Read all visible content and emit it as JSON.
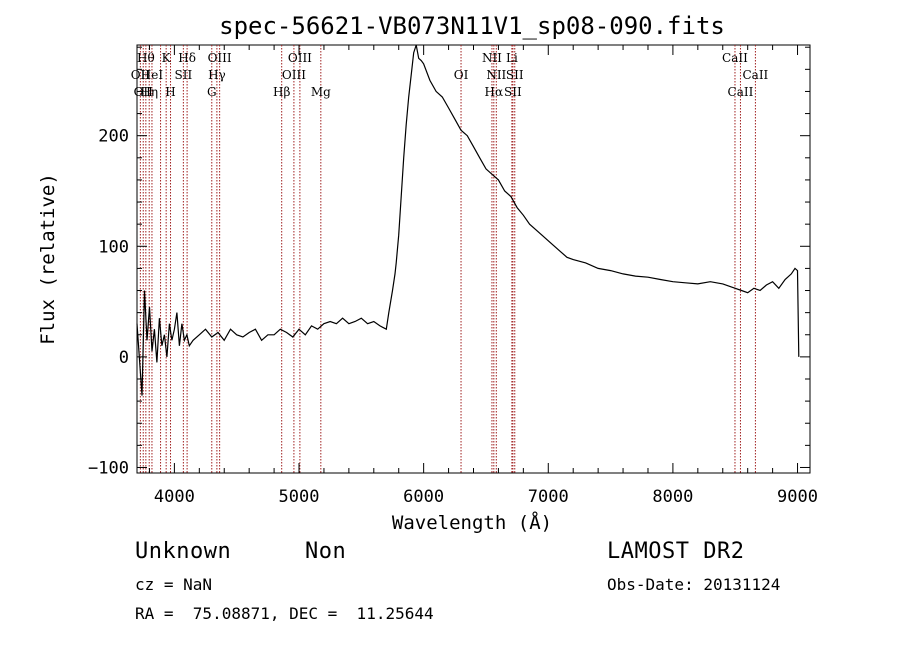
{
  "chart_data": {
    "type": "line",
    "title": "spec-56621-VB073N11V1_sp08-090.fits",
    "xlabel": "Wavelength (Å)",
    "ylabel": "Flux (relative)",
    "xlim": [
      3700,
      9100
    ],
    "ylim": [
      -105,
      282
    ],
    "xticks": [
      4000,
      5000,
      6000,
      7000,
      8000,
      9000
    ],
    "yticks": [
      -100,
      0,
      100,
      200
    ],
    "grid": false,
    "line_color": "#000000",
    "marker_color": "#a02020",
    "series": [
      {
        "x": [
          3700,
          3740,
          3760,
          3780,
          3800,
          3820,
          3840,
          3860,
          3880,
          3900,
          3920,
          3940,
          3960,
          3980,
          4000,
          4020,
          4040,
          4060,
          4080,
          4100,
          4120,
          4150,
          4200,
          4250,
          4300,
          4350,
          4400,
          4450,
          4500,
          4550,
          4600,
          4650,
          4700,
          4750,
          4800,
          4850,
          4900,
          4950,
          5000,
          5050,
          5100,
          5150,
          5200,
          5250,
          5300,
          5350,
          5400,
          5450,
          5500,
          5550,
          5600,
          5650,
          5700,
          5720,
          5750,
          5770,
          5780,
          5800,
          5820,
          5840,
          5860,
          5880,
          5900,
          5920,
          5940,
          5960,
          5980,
          6000,
          6050,
          6100,
          6150,
          6200,
          6250,
          6300,
          6350,
          6400,
          6450,
          6500,
          6550,
          6600,
          6650,
          6700,
          6750,
          6800,
          6850,
          6900,
          6950,
          7000,
          7050,
          7100,
          7150,
          7200,
          7300,
          7400,
          7500,
          7600,
          7700,
          7800,
          7900,
          8000,
          8100,
          8200,
          8300,
          8400,
          8500,
          8550,
          8600,
          8650,
          8700,
          8750,
          8800,
          8850,
          8900,
          8950,
          8980,
          9000,
          9010
        ],
        "y": [
          30,
          -35,
          60,
          15,
          45,
          5,
          25,
          -5,
          35,
          10,
          20,
          0,
          30,
          15,
          25,
          40,
          10,
          30,
          15,
          20,
          10,
          15,
          20,
          25,
          18,
          22,
          15,
          25,
          20,
          18,
          22,
          25,
          15,
          20,
          20,
          25,
          22,
          18,
          25,
          20,
          28,
          25,
          30,
          32,
          30,
          35,
          30,
          32,
          35,
          30,
          32,
          28,
          25,
          40,
          60,
          75,
          85,
          110,
          145,
          180,
          210,
          235,
          255,
          275,
          282,
          270,
          268,
          265,
          250,
          240,
          235,
          225,
          215,
          205,
          200,
          190,
          180,
          170,
          165,
          160,
          150,
          145,
          135,
          128,
          120,
          115,
          110,
          105,
          100,
          95,
          90,
          88,
          85,
          80,
          78,
          75,
          73,
          72,
          70,
          68,
          67,
          66,
          68,
          66,
          62,
          60,
          58,
          62,
          60,
          65,
          68,
          62,
          70,
          75,
          80,
          78,
          0
        ]
      }
    ],
    "lines": [
      {
        "wl": 3727,
        "label": "OII",
        "row": 2
      },
      {
        "wl": 3750,
        "label": "OII",
        "row": 3
      },
      {
        "wl": 3771,
        "label": "Hθ",
        "row": 1
      },
      {
        "wl": 3798,
        "label": "Hη",
        "row": 3
      },
      {
        "wl": 3820,
        "label": "HeI",
        "row": 2
      },
      {
        "wl": 3889,
        "label": "",
        "row": 0
      },
      {
        "wl": 3934,
        "label": "K",
        "row": 1
      },
      {
        "wl": 3969,
        "label": "H",
        "row": 3
      },
      {
        "wl": 4072,
        "label": "SII",
        "row": 2
      },
      {
        "wl": 4102,
        "label": "Hδ",
        "row": 1
      },
      {
        "wl": 4300,
        "label": "G",
        "row": 3
      },
      {
        "wl": 4341,
        "label": "Hγ",
        "row": 2
      },
      {
        "wl": 4363,
        "label": "OIII",
        "row": 1
      },
      {
        "wl": 4861,
        "label": "Hβ",
        "row": 3
      },
      {
        "wl": 4959,
        "label": "OIII",
        "row": 2
      },
      {
        "wl": 5007,
        "label": "OIII",
        "row": 1
      },
      {
        "wl": 5175,
        "label": "Mg",
        "row": 3
      },
      {
        "wl": 6300,
        "label": "OI",
        "row": 2
      },
      {
        "wl": 6548,
        "label": "NII",
        "row": 1
      },
      {
        "wl": 6563,
        "label": "Hα",
        "row": 3
      },
      {
        "wl": 6583,
        "label": "NII",
        "row": 2
      },
      {
        "wl": 6708,
        "label": "Li",
        "row": 1
      },
      {
        "wl": 6716,
        "label": "SII",
        "row": 3
      },
      {
        "wl": 6731,
        "label": "SII",
        "row": 2
      },
      {
        "wl": 8498,
        "label": "CaII",
        "row": 1
      },
      {
        "wl": 8542,
        "label": "CaII",
        "row": 3
      },
      {
        "wl": 8662,
        "label": "CaII",
        "row": 2
      }
    ]
  },
  "info": {
    "object_class": "Unknown",
    "object_subclass": "Non",
    "survey": "LAMOST DR2",
    "cz": "cz = NaN",
    "obs_date": "Obs-Date: 20131124",
    "coords": "RA =  75.08871, DEC =  11.25644"
  }
}
